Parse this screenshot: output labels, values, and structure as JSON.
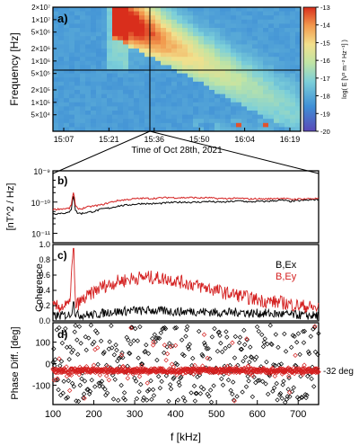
{
  "chart_data": [
    {
      "type": "heatmap",
      "panel_label": "a)",
      "ylabel": "Frequency [Hz]",
      "xlabel": "Time of Oct 28th, 2021",
      "x_ticks": [
        "15:07",
        "15:21",
        "15:36",
        "15:50",
        "16:04",
        "16:19"
      ],
      "y_scale": "log",
      "y_range": [
        20000,
        20000000
      ],
      "y_ticks": [
        "2×10⁷",
        "1×10⁷",
        "5×10⁶",
        "2×10⁶",
        "1×10⁶",
        "5×10⁵",
        "2×10⁵",
        "1×10⁵",
        "5×10⁴"
      ],
      "y_tick_values": [
        20000000,
        10000000,
        5000000,
        2000000,
        1000000,
        500000,
        200000,
        100000,
        50000
      ],
      "colorbar": {
        "label": "log( E [V² m⁻² Hz⁻¹] )",
        "range": [
          -20,
          -13
        ],
        "ticks": [
          "-13",
          "-14",
          "-15",
          "-16",
          "-17",
          "-18",
          "-19",
          "-20"
        ],
        "tick_values": [
          -13,
          -14,
          -15,
          -16,
          -17,
          -18,
          -19,
          -20
        ]
      },
      "cursor": {
        "time": "15:36",
        "frequency_hz": 1000000
      }
    },
    {
      "type": "line",
      "panel_label": "b)",
      "ylabel": "[nT^2 / Hz]",
      "y_scale": "log",
      "ylim": [
        5e-12,
        1e-09
      ],
      "y_ticks": [
        "10⁻⁹",
        "10⁻¹⁰",
        "10⁻¹¹"
      ],
      "y_tick_values": [
        1e-09,
        1e-10,
        1e-11
      ],
      "x": [
        100,
        140,
        145,
        150,
        155,
        160,
        170,
        180,
        200,
        220,
        240,
        260,
        280,
        300,
        320,
        340,
        360,
        380,
        400,
        420,
        440,
        460,
        480,
        500,
        520,
        540,
        560,
        580,
        600,
        620,
        640,
        660,
        680,
        700,
        720,
        740,
        750
      ],
      "series": [
        {
          "color": "#000000",
          "values": [
            4.2e-11,
            4.6e-11,
            6e-11,
            1.6e-10,
            5.5e-11,
            4.5e-11,
            4.3e-11,
            4.6e-11,
            5e-11,
            6e-11,
            6.5e-11,
            7.5e-11,
            8e-11,
            8.5e-11,
            9e-11,
            8.8e-11,
            9e-11,
            9.5e-11,
            9.8e-11,
            1e-10,
            9.8e-11,
            1e-10,
            1.05e-10,
            1e-10,
            1e-10,
            1.05e-10,
            1.1e-10,
            1e-10,
            1.05e-10,
            1.05e-10,
            1.1e-10,
            1.15e-10,
            1.05e-10,
            1.1e-10,
            1.15e-10,
            1.2e-10,
            1.2e-10
          ]
        },
        {
          "color": "#d42020",
          "values": [
            5.8e-11,
            6.3e-11,
            8e-11,
            2e-10,
            7.5e-11,
            6.3e-11,
            6e-11,
            6.8e-11,
            7.5e-11,
            8.2e-11,
            9.8e-11,
            1.12e-10,
            1.2e-10,
            1.27e-10,
            1.32e-10,
            1.3e-10,
            1.35e-10,
            1.4e-10,
            1.38e-10,
            1.38e-10,
            1.4e-10,
            1.35e-10,
            1.38e-10,
            1.3e-10,
            1.3e-10,
            1.3e-10,
            1.32e-10,
            1.25e-10,
            1.28e-10,
            1.25e-10,
            1.3e-10,
            1.33e-10,
            1.23e-10,
            1.25e-10,
            1.28e-10,
            1.3e-10,
            1.3e-10
          ]
        }
      ]
    },
    {
      "type": "line",
      "panel_label": "c)",
      "ylabel": "Coherence",
      "ylim": [
        0,
        1
      ],
      "y_ticks": [
        "1.0",
        "0.8",
        "0.6",
        "0.4",
        "0.2",
        "0.0"
      ],
      "y_tick_values": [
        1.0,
        0.8,
        0.6,
        0.4,
        0.2,
        0.0
      ],
      "x": [
        100,
        140,
        150,
        155,
        160,
        180,
        200,
        220,
        240,
        260,
        280,
        300,
        320,
        340,
        360,
        380,
        400,
        420,
        440,
        460,
        480,
        500,
        520,
        540,
        560,
        580,
        600,
        620,
        640,
        660,
        680,
        700,
        720,
        740,
        750
      ],
      "series": [
        {
          "name": "B,Ex",
          "color": "#000000",
          "values": [
            0.06,
            0.08,
            0.15,
            0.1,
            0.08,
            0.08,
            0.08,
            0.1,
            0.12,
            0.12,
            0.13,
            0.14,
            0.13,
            0.14,
            0.13,
            0.13,
            0.12,
            0.12,
            0.13,
            0.12,
            0.12,
            0.11,
            0.11,
            0.11,
            0.12,
            0.1,
            0.1,
            0.1,
            0.09,
            0.09,
            0.08,
            0.08,
            0.07,
            0.07,
            0.07
          ]
        },
        {
          "name": "B,Ey",
          "color": "#d42020",
          "values": [
            0.18,
            0.2,
            0.95,
            0.2,
            0.22,
            0.3,
            0.38,
            0.45,
            0.48,
            0.52,
            0.54,
            0.56,
            0.57,
            0.57,
            0.56,
            0.55,
            0.53,
            0.5,
            0.48,
            0.45,
            0.43,
            0.4,
            0.37,
            0.35,
            0.33,
            0.3,
            0.28,
            0.26,
            0.25,
            0.24,
            0.22,
            0.2,
            0.19,
            0.17,
            0.17
          ]
        }
      ]
    },
    {
      "type": "scatter",
      "panel_label": "d)",
      "ylabel": "Phase Diff. [deg]",
      "xlabel": "f [kHz]",
      "xlim": [
        100,
        750
      ],
      "ylim": [
        -190,
        190
      ],
      "x_ticks": [
        "100",
        "200",
        "300",
        "400",
        "500",
        "600",
        "700"
      ],
      "x_tick_values": [
        100,
        200,
        300,
        400,
        500,
        600,
        700
      ],
      "y_ticks": [
        "100",
        "0",
        "-100"
      ],
      "y_tick_values": [
        100,
        0,
        -100
      ],
      "reference": {
        "value": -32,
        "label": "-32 deg"
      },
      "series": [
        {
          "name": "B,Ex",
          "color": "#000000",
          "marker": "diamond",
          "distribution": "uniform -180..180"
        },
        {
          "name": "B,Ey",
          "color": "#d42020",
          "marker": "diamond",
          "distribution": "clustered near -32"
        }
      ]
    }
  ]
}
